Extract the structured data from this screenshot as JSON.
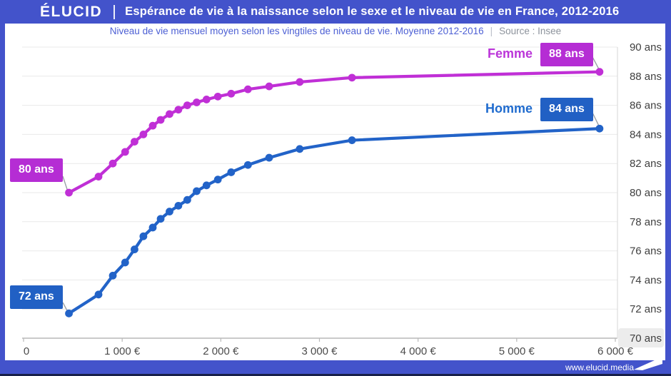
{
  "header": {
    "logo": "ÉLUCID",
    "title": "Espérance de vie à la naissance selon le sexe et le niveau de vie en France, 2012-2016"
  },
  "subtitle": {
    "text": "Niveau de vie mensuel moyen selon les vingtiles de niveau de vie. Moyenne 2012-2016",
    "separator": "|",
    "source": "Source : Insee"
  },
  "footer": {
    "url": "www.elucid.media",
    "flag_icon": "flag-pennant"
  },
  "colors": {
    "frame_blue": "#4353cb",
    "femme": "#c02fd6",
    "homme": "#2263c8",
    "grid": "#e9e9e9",
    "axis": "#b9b9b9",
    "plot_right_edge": "#dcdcdc",
    "label_gray": "#4b4b4b",
    "connector_gray": "#9aa0a6",
    "highlight_bg": "#ececec"
  },
  "chart_data": {
    "type": "line",
    "title": "Espérance de vie à la naissance selon le sexe et le niveau de vie en France, 2012-2016",
    "xlabel": "",
    "ylabel": "",
    "xlim": [
      0,
      6000
    ],
    "ylim": [
      70,
      90
    ],
    "grid": true,
    "x": [
      460,
      760,
      905,
      1030,
      1125,
      1215,
      1310,
      1390,
      1480,
      1570,
      1660,
      1755,
      1855,
      1970,
      2105,
      2275,
      2490,
      2800,
      3330,
      5840
    ],
    "series": [
      {
        "name": "Femme",
        "color_key": "femme",
        "values": [
          80.0,
          81.1,
          82.0,
          82.8,
          83.5,
          84.0,
          84.6,
          85.0,
          85.4,
          85.7,
          86.0,
          86.2,
          86.4,
          86.6,
          86.8,
          87.1,
          87.3,
          87.6,
          87.9,
          88.3
        ]
      },
      {
        "name": "Homme",
        "color_key": "homme",
        "values": [
          71.7,
          73.0,
          74.3,
          75.2,
          76.1,
          77.0,
          77.6,
          78.2,
          78.7,
          79.1,
          79.5,
          80.1,
          80.5,
          80.9,
          81.4,
          81.9,
          82.4,
          83.0,
          83.6,
          84.4
        ]
      }
    ],
    "x_ticks": [
      {
        "value": 0,
        "label": "0"
      },
      {
        "value": 1000,
        "label": "1 000 €"
      },
      {
        "value": 2000,
        "label": "2 000 €"
      },
      {
        "value": 3000,
        "label": "3 000 €"
      },
      {
        "value": 4000,
        "label": "4 000 €"
      },
      {
        "value": 5000,
        "label": "5 000 €"
      },
      {
        "value": 6000,
        "label": "6 000 €"
      }
    ],
    "y_ticks": [
      {
        "value": 70,
        "label": "70 ans",
        "highlight": true
      },
      {
        "value": 72,
        "label": "72 ans",
        "highlight": false
      },
      {
        "value": 74,
        "label": "74 ans",
        "highlight": false
      },
      {
        "value": 76,
        "label": "76 ans",
        "highlight": false
      },
      {
        "value": 78,
        "label": "78 ans",
        "highlight": false
      },
      {
        "value": 80,
        "label": "80 ans",
        "highlight": false
      },
      {
        "value": 82,
        "label": "82 ans",
        "highlight": false
      },
      {
        "value": 84,
        "label": "84 ans",
        "highlight": false
      },
      {
        "value": 86,
        "label": "86 ans",
        "highlight": false
      },
      {
        "value": 88,
        "label": "88 ans",
        "highlight": false
      },
      {
        "value": 90,
        "label": "90 ans",
        "highlight": false
      }
    ],
    "annotations": {
      "femme_start": "80 ans",
      "homme_start": "72 ans",
      "femme_end": "88 ans",
      "homme_end": "84 ans"
    },
    "legend_position": "inline-right"
  }
}
